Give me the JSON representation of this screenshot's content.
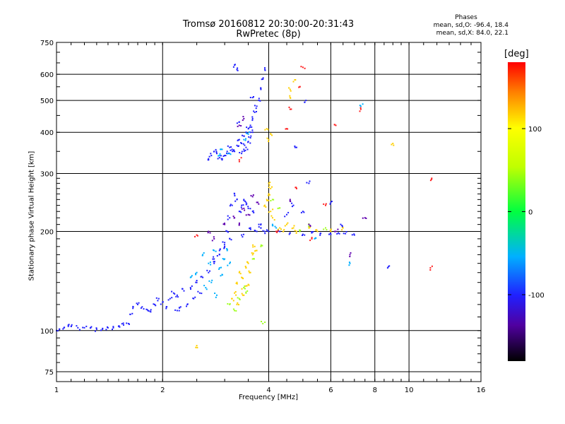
{
  "chart_data": {
    "type": "scatter",
    "title": "Tromsø 20160812 20:30:00-20:31:43",
    "subtitle": "RwPretec (8p)",
    "xlabel": "Frequency [MHz]",
    "ylabel": "Stationary phase Virtual Height [km]",
    "x_scale": "log",
    "y_scale": "log",
    "xlim": [
      1,
      16
    ],
    "ylim": [
      70,
      750
    ],
    "x_ticks": [
      "1",
      "2",
      "4",
      "6",
      "8",
      "10",
      "16"
    ],
    "y_ticks": [
      "75",
      "100",
      "200",
      "300",
      "400",
      "500",
      "600",
      "750"
    ],
    "grid": true,
    "stats": {
      "heading": "Phases",
      "o_label": "mean, sd,O:",
      "o_values": "-96.4, 18.4",
      "x_label": "mean, sd,X:",
      "x_values": "84.0, 22.1"
    },
    "colorbar": {
      "label": "[deg]",
      "range": [
        -180,
        180
      ],
      "ticks": [
        "100",
        "0",
        "-100"
      ],
      "tick_values": [
        100,
        0,
        -100
      ]
    },
    "series": [
      {
        "color": "#2020ff",
        "points": [
          [
            1.0,
            100
          ],
          [
            1.02,
            101
          ],
          [
            1.05,
            102
          ],
          [
            1.08,
            103
          ],
          [
            1.1,
            103
          ],
          [
            1.15,
            102
          ],
          [
            1.2,
            102
          ],
          [
            1.25,
            102
          ],
          [
            1.3,
            101
          ],
          [
            1.35,
            101
          ],
          [
            1.4,
            102
          ],
          [
            1.45,
            102
          ],
          [
            1.5,
            103
          ],
          [
            1.55,
            104
          ],
          [
            1.6,
            105
          ],
          [
            1.62,
            112
          ],
          [
            1.65,
            118
          ],
          [
            1.7,
            120
          ],
          [
            1.75,
            118
          ],
          [
            1.8,
            116
          ],
          [
            1.85,
            114
          ],
          [
            1.9,
            120
          ],
          [
            1.95,
            125
          ],
          [
            2.0,
            122
          ],
          [
            2.05,
            118
          ],
          [
            2.1,
            125
          ],
          [
            2.15,
            130
          ],
          [
            2.2,
            128
          ],
          [
            2.3,
            132
          ],
          [
            2.4,
            135
          ],
          [
            2.5,
            140
          ],
          [
            2.6,
            145
          ],
          [
            2.7,
            150
          ],
          [
            2.8,
            160
          ],
          [
            2.9,
            170
          ],
          [
            3.0,
            180
          ],
          [
            3.05,
            200
          ],
          [
            3.1,
            220
          ],
          [
            3.15,
            240
          ],
          [
            3.2,
            260
          ],
          [
            3.25,
            250
          ],
          [
            3.3,
            230
          ],
          [
            3.35,
            240
          ],
          [
            3.4,
            250
          ],
          [
            3.45,
            245
          ],
          [
            3.5,
            235
          ],
          [
            3.6,
            230
          ],
          [
            3.1,
            190
          ],
          [
            3.0,
            185
          ],
          [
            2.9,
            175
          ],
          [
            2.8,
            165
          ],
          [
            2.2,
            115
          ],
          [
            2.25,
            118
          ],
          [
            2.35,
            120
          ],
          [
            2.45,
            125
          ],
          [
            2.55,
            130
          ],
          [
            2.7,
            330
          ],
          [
            2.75,
            340
          ],
          [
            2.8,
            350
          ],
          [
            2.85,
            345
          ],
          [
            2.9,
            335
          ],
          [
            2.95,
            330
          ],
          [
            3.0,
            340
          ],
          [
            3.05,
            350
          ],
          [
            3.1,
            360
          ],
          [
            3.15,
            355
          ],
          [
            3.2,
            350
          ],
          [
            3.25,
            365
          ],
          [
            3.3,
            380
          ],
          [
            3.35,
            370
          ],
          [
            3.4,
            390
          ],
          [
            3.45,
            400
          ],
          [
            3.5,
            410
          ],
          [
            3.55,
            420
          ],
          [
            3.6,
            440
          ],
          [
            3.65,
            460
          ],
          [
            3.7,
            480
          ],
          [
            3.75,
            500
          ],
          [
            3.8,
            540
          ],
          [
            3.85,
            580
          ],
          [
            3.9,
            620
          ],
          [
            3.6,
            400
          ],
          [
            3.55,
            385
          ],
          [
            3.5,
            375
          ],
          [
            3.45,
            360
          ],
          [
            3.4,
            355
          ],
          [
            3.35,
            345
          ],
          [
            3.2,
            640
          ],
          [
            3.25,
            620
          ],
          [
            3.7,
            200
          ],
          [
            3.8,
            205
          ],
          [
            3.9,
            200
          ],
          [
            4.0,
            200
          ],
          [
            4.3,
            200
          ],
          [
            4.6,
            198
          ],
          [
            5.0,
            196
          ],
          [
            5.3,
            198
          ],
          [
            5.6,
            197
          ],
          [
            6.0,
            196
          ],
          [
            6.3,
            198
          ],
          [
            6.6,
            197
          ],
          [
            7.0,
            195
          ],
          [
            3.6,
            510
          ],
          [
            3.3,
            430
          ]
        ]
      },
      {
        "color": "#00b0ff",
        "points": [
          [
            2.6,
            170
          ],
          [
            2.7,
            160
          ],
          [
            2.8,
            175
          ],
          [
            2.9,
            155
          ],
          [
            2.95,
            148
          ],
          [
            3.0,
            165
          ],
          [
            3.05,
            175
          ],
          [
            3.1,
            160
          ],
          [
            2.5,
            150
          ],
          [
            2.4,
            145
          ],
          [
            2.65,
            135
          ],
          [
            2.75,
            140
          ],
          [
            2.85,
            128
          ],
          [
            2.9,
            340
          ],
          [
            2.95,
            355
          ],
          [
            3.1,
            345
          ],
          [
            3.4,
            380
          ],
          [
            3.5,
            395
          ],
          [
            4.1,
            210
          ],
          [
            4.2,
            205
          ],
          [
            5.4,
            190
          ],
          [
            6.8,
            160
          ],
          [
            7.3,
            480
          ]
        ]
      },
      {
        "color": "#ffd000",
        "points": [
          [
            3.2,
            130
          ],
          [
            3.25,
            140
          ],
          [
            3.3,
            150
          ],
          [
            3.35,
            145
          ],
          [
            3.4,
            135
          ],
          [
            3.45,
            155
          ],
          [
            3.5,
            160
          ],
          [
            3.55,
            150
          ],
          [
            3.6,
            170
          ],
          [
            3.65,
            180
          ],
          [
            3.7,
            175
          ],
          [
            3.15,
            125
          ],
          [
            3.25,
            120
          ],
          [
            3.4,
            128
          ],
          [
            3.5,
            138
          ],
          [
            3.9,
            240
          ],
          [
            3.95,
            250
          ],
          [
            4.0,
            260
          ],
          [
            4.05,
            230
          ],
          [
            4.1,
            220
          ],
          [
            4.0,
            280
          ],
          [
            4.05,
            270
          ],
          [
            4.3,
            205
          ],
          [
            4.4,
            200
          ],
          [
            4.5,
            210
          ],
          [
            4.7,
            205
          ],
          [
            4.8,
            200
          ],
          [
            5.2,
            205
          ],
          [
            5.5,
            200
          ],
          [
            6.0,
            200
          ],
          [
            6.5,
            205
          ],
          [
            4.6,
            540
          ],
          [
            4.7,
            570
          ],
          [
            4.6,
            510
          ],
          [
            4.0,
            380
          ],
          [
            4.05,
            395
          ],
          [
            3.95,
            410
          ],
          [
            2.5,
            90
          ],
          [
            9.0,
            370
          ]
        ]
      },
      {
        "color": "#a0ff20",
        "points": [
          [
            3.1,
            120
          ],
          [
            3.2,
            115
          ],
          [
            3.3,
            125
          ],
          [
            3.4,
            135
          ],
          [
            3.6,
            165
          ],
          [
            3.8,
            180
          ],
          [
            4.1,
            250
          ],
          [
            4.25,
            235
          ],
          [
            4.9,
            200
          ],
          [
            5.2,
            210
          ],
          [
            5.8,
            205
          ],
          [
            3.85,
            105
          ],
          [
            3.45,
            130
          ]
        ]
      },
      {
        "color": "#ff2020",
        "points": [
          [
            5.0,
            630
          ],
          [
            4.9,
            550
          ],
          [
            4.6,
            470
          ],
          [
            4.5,
            410
          ],
          [
            4.8,
            270
          ],
          [
            5.8,
            240
          ],
          [
            7.3,
            470
          ],
          [
            11.6,
            290
          ],
          [
            11.5,
            155
          ],
          [
            2.5,
            195
          ],
          [
            4.2,
            200
          ],
          [
            5.3,
            190
          ],
          [
            6.2,
            420
          ],
          [
            3.3,
            330
          ]
        ]
      },
      {
        "color": "#6000b0",
        "points": [
          [
            3.2,
            220
          ],
          [
            3.3,
            210
          ],
          [
            3.4,
            235
          ],
          [
            3.5,
            225
          ],
          [
            3.6,
            255
          ],
          [
            3.7,
            245
          ],
          [
            2.8,
            190
          ],
          [
            2.7,
            200
          ],
          [
            3.0,
            210
          ],
          [
            3.3,
            420
          ],
          [
            3.4,
            440
          ],
          [
            4.6,
            250
          ],
          [
            5.2,
            210
          ],
          [
            6.2,
            200
          ],
          [
            6.8,
            170
          ],
          [
            7.5,
            220
          ]
        ]
      },
      {
        "color": "#2020ff",
        "points": [
          [
            5.1,
            500
          ],
          [
            4.8,
            360
          ],
          [
            5.2,
            280
          ],
          [
            8.7,
            155
          ],
          [
            3.35,
            195
          ],
          [
            3.55,
            205
          ],
          [
            3.75,
            210
          ],
          [
            4.5,
            225
          ],
          [
            4.7,
            240
          ],
          [
            5.0,
            230
          ],
          [
            6.0,
            245
          ],
          [
            6.4,
            210
          ]
        ]
      }
    ]
  }
}
